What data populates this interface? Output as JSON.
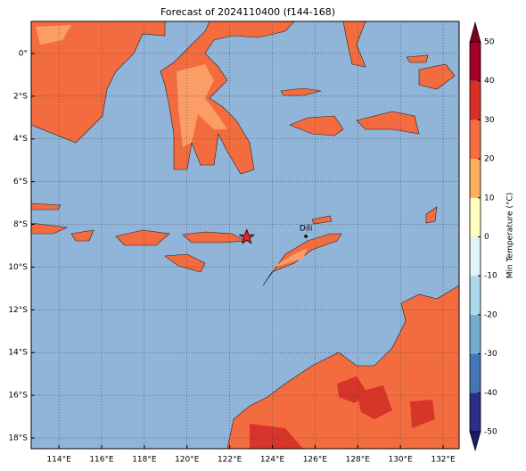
{
  "map": {
    "title": "Forecast of 2024110400 (f144-168)",
    "xlim": [
      112.7,
      132.75
    ],
    "ylim": [
      -18.5,
      1.5
    ],
    "xticks": [
      {
        "value": 114,
        "label": "114°E"
      },
      {
        "value": 116,
        "label": "116°E"
      },
      {
        "value": 118,
        "label": "118°E"
      },
      {
        "value": 120,
        "label": "120°E"
      },
      {
        "value": 122,
        "label": "122°E"
      },
      {
        "value": 124,
        "label": "124°E"
      },
      {
        "value": 126,
        "label": "126°E"
      },
      {
        "value": 128,
        "label": "128°E"
      },
      {
        "value": 130,
        "label": "130°E"
      },
      {
        "value": 132,
        "label": "132°E"
      }
    ],
    "yticks": [
      {
        "value": 0,
        "label": "0°"
      },
      {
        "value": -2,
        "label": "2°S"
      },
      {
        "value": -4,
        "label": "4°S"
      },
      {
        "value": -6,
        "label": "6°S"
      },
      {
        "value": -8,
        "label": "8°S"
      },
      {
        "value": -10,
        "label": "10°S"
      },
      {
        "value": -12,
        "label": "12°S"
      },
      {
        "value": -14,
        "label": "14°S"
      },
      {
        "value": -16,
        "label": "16°S"
      },
      {
        "value": -18,
        "label": "18°S"
      }
    ],
    "grid": true,
    "city": {
      "label": "Dili",
      "lon": 125.57,
      "lat": -8.56
    },
    "star": {
      "lon": 122.8,
      "lat": -8.6,
      "color": "#e8211b"
    },
    "colorbar": {
      "label": "Min Temperature (°C)",
      "ticks": [
        -50,
        -40,
        -30,
        -20,
        -10,
        0,
        10,
        20,
        30,
        40,
        50
      ],
      "colors": [
        "#2b2f8a",
        "#4575b4",
        "#74add1",
        "#abd9e9",
        "#e0f3f8",
        "#ffffbf",
        "#fdae61",
        "#f46d43",
        "#d73027",
        "#a50026"
      ],
      "under_color": "#1a1a6e",
      "over_color": "#800020"
    }
  }
}
